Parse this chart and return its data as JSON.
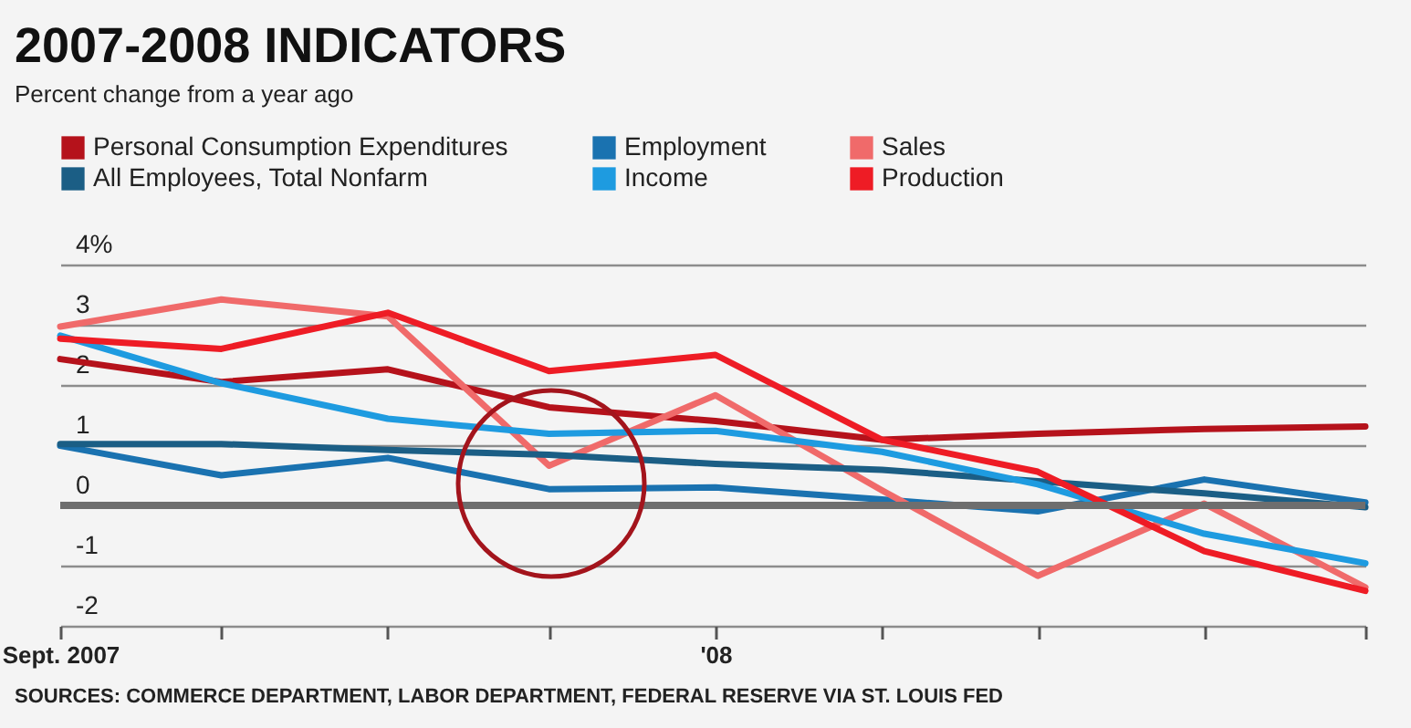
{
  "chart_data": {
    "type": "line",
    "title": "2007-2008 INDICATORS",
    "subtitle": "Percent change from a year ago",
    "x": [
      "2007-09",
      "2007-10",
      "2007-11",
      "2007-12",
      "2008-01",
      "2008-02",
      "2008-03",
      "2008-04",
      "2008-05"
    ],
    "xlim": [
      "2007-09",
      "2008-05"
    ],
    "xticks": [
      {
        "value": "2007-09",
        "label": "Sept. 2007"
      },
      {
        "value": "2007-10",
        "label": null
      },
      {
        "value": "2007-11",
        "label": null
      },
      {
        "value": "2007-12",
        "label": null
      },
      {
        "value": "2008-01",
        "label": "'08"
      },
      {
        "value": "2008-02",
        "label": null
      },
      {
        "value": "2008-03",
        "label": null
      },
      {
        "value": "2008-04",
        "label": null
      },
      {
        "value": "2008-05",
        "label": null
      }
    ],
    "ylim": [
      -2,
      4
    ],
    "yticks": [
      -2,
      -1,
      0,
      1,
      2,
      3,
      {
        "value": 4,
        "label": "4%"
      }
    ],
    "grid": "y",
    "legend": "top",
    "marker": "none",
    "line_style": "solid",
    "ref_lines": [
      {
        "axis": "y",
        "value": 0,
        "label": null,
        "color": "#6e6e6e"
      }
    ],
    "series": [
      {
        "name": "Personal Consumption Expenditures",
        "color": "#b5121b",
        "values": [
          2.43,
          2.05,
          2.26,
          1.63,
          1.4,
          1.09,
          1.19,
          1.27,
          1.31
        ]
      },
      {
        "name": "Employment",
        "color": "#1a72b0",
        "values": [
          0.99,
          0.5,
          0.79,
          0.27,
          0.3,
          0.1,
          -0.1,
          0.43,
          0.05
        ]
      },
      {
        "name": "Sales",
        "color": "#f06a6a",
        "values": [
          2.97,
          3.42,
          3.14,
          0.66,
          1.83,
          0.25,
          -1.17,
          0.03,
          -1.36
        ]
      },
      {
        "name": "All Employees, Total Nonfarm",
        "color": "#1b5e85",
        "values": [
          1.02,
          1.02,
          0.92,
          0.84,
          0.69,
          0.59,
          0.4,
          0.2,
          -0.03
        ]
      },
      {
        "name": "Income",
        "color": "#1e9be0",
        "values": [
          2.82,
          2.03,
          1.44,
          1.19,
          1.24,
          0.89,
          0.35,
          -0.47,
          -0.96
        ]
      },
      {
        "name": "Production",
        "color": "#ee1c25",
        "values": [
          2.77,
          2.6,
          3.2,
          2.23,
          2.5,
          1.09,
          0.56,
          -0.76,
          -1.42
        ]
      }
    ],
    "annotations": [
      "SOURCES: COMMERCE DEPARTMENT, LABOR DEPARTMENT, FEDERAL RESERVE VIA ST. LOUIS FED"
    ]
  }
}
